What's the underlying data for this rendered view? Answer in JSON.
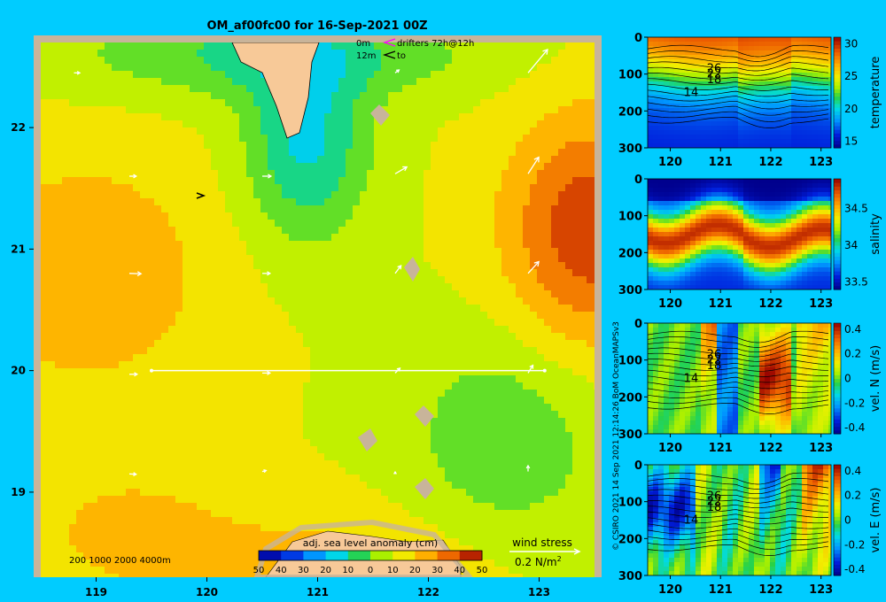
{
  "title": "OM_af00fc00 for 16-Sep-2021 00Z",
  "legend": {
    "depth_0": "0m",
    "depth_12": "12m",
    "drifters": "drifters 72h@12h",
    "to": "to"
  },
  "bathymetry_label": "200  1000  2000  4000m",
  "colorbar": {
    "title": "adj. sea level anomaly (cm)",
    "ticks": [
      "50",
      "40",
      "30",
      "20",
      "10",
      "0",
      "10",
      "20",
      "30",
      "40",
      "50"
    ]
  },
  "wind_stress": {
    "title": "wind stress",
    "scale_label": "0.2 N/m",
    "scale_sup": "2"
  },
  "credit": "© CSIRO 2021   14 Sep 2021 12:14:26 BoM OceanMAPSv3",
  "map": {
    "xlim": [
      118.5,
      123.5
    ],
    "ylim": [
      18.3,
      22.7
    ],
    "x_ticks": [
      "119",
      "120",
      "121",
      "122",
      "123"
    ],
    "y_ticks": [
      "19",
      "20",
      "21",
      "22"
    ],
    "section_lat": 20.0,
    "section_lon_range": [
      119.5,
      123.05
    ],
    "colors": {
      "land": "#f7c998",
      "frame": "#c8b49a",
      "sea_default": "#a8f000"
    },
    "eddies": [
      {
        "lon": 118.9,
        "lat": 20.8,
        "rx": 1.1,
        "ry": 0.95,
        "value": 28
      },
      {
        "lon": 123.45,
        "lat": 21.15,
        "rx": 0.75,
        "ry": 0.95,
        "value": 42
      },
      {
        "lon": 120.9,
        "lat": 21.9,
        "rx": 0.55,
        "ry": 0.8,
        "value": -14
      },
      {
        "lon": 120.6,
        "lat": 22.6,
        "rx": 1.8,
        "ry": 0.35,
        "value": -6
      },
      {
        "lon": 122.7,
        "lat": 19.45,
        "rx": 0.9,
        "ry": 0.9,
        "value": -2
      },
      {
        "lon": 121.0,
        "lat": 18.3,
        "rx": 1.5,
        "ry": 0.55,
        "value": 24
      },
      {
        "lon": 119.3,
        "lat": 18.7,
        "rx": 0.9,
        "ry": 0.5,
        "value": 22
      }
    ],
    "wind_arrows": [
      {
        "lon": 118.8,
        "lat": 22.45,
        "u": 0.3,
        "v": 0.0
      },
      {
        "lon": 119.3,
        "lat": 21.6,
        "u": 0.35,
        "v": 0.0
      },
      {
        "lon": 119.3,
        "lat": 20.8,
        "u": 0.6,
        "v": -0.02
      },
      {
        "lon": 119.3,
        "lat": 19.97,
        "u": 0.4,
        "v": 0.0
      },
      {
        "lon": 119.3,
        "lat": 19.15,
        "u": 0.35,
        "v": -0.02
      },
      {
        "lon": 120.5,
        "lat": 21.6,
        "u": 0.45,
        "v": 0.0
      },
      {
        "lon": 120.5,
        "lat": 20.8,
        "u": 0.4,
        "v": 0.0
      },
      {
        "lon": 120.5,
        "lat": 19.98,
        "u": 0.4,
        "v": 0.0
      },
      {
        "lon": 120.5,
        "lat": 19.17,
        "u": 0.2,
        "v": 0.05
      },
      {
        "lon": 121.7,
        "lat": 22.45,
        "u": 0.2,
        "v": 0.15
      },
      {
        "lon": 121.7,
        "lat": 21.62,
        "u": 0.6,
        "v": 0.35
      },
      {
        "lon": 121.7,
        "lat": 20.8,
        "u": 0.3,
        "v": 0.4
      },
      {
        "lon": 121.7,
        "lat": 19.98,
        "u": 0.25,
        "v": 0.25
      },
      {
        "lon": 121.7,
        "lat": 19.15,
        "u": 0.0,
        "v": 0.1
      },
      {
        "lon": 122.9,
        "lat": 22.45,
        "u": 1.0,
        "v": 1.2
      },
      {
        "lon": 122.9,
        "lat": 21.62,
        "u": 0.55,
        "v": 0.85
      },
      {
        "lon": 122.9,
        "lat": 20.8,
        "u": 0.55,
        "v": 0.6
      },
      {
        "lon": 122.9,
        "lat": 19.98,
        "u": 0.25,
        "v": 0.4
      },
      {
        "lon": 122.9,
        "lat": 19.17,
        "u": 0.0,
        "v": 0.3
      }
    ]
  },
  "sections": [
    {
      "name": "temperature",
      "cbar_ticks": [
        "30",
        "25",
        "20",
        "15"
      ],
      "cbar_range": [
        14,
        31
      ],
      "colormap": "temp"
    },
    {
      "name": "salinity",
      "cbar_ticks": [
        "34.5",
        "34",
        "33.5"
      ],
      "cbar_range": [
        33.4,
        34.9
      ],
      "colormap": "temp"
    },
    {
      "name": "vel. N (m/s)",
      "cbar_ticks": [
        "0.4",
        "0.2",
        "0",
        "-0.2",
        "-0.4"
      ],
      "cbar_range": [
        -0.45,
        0.45
      ],
      "colormap": "temp"
    },
    {
      "name": "vel. E (m/s)",
      "cbar_ticks": [
        "0.4",
        "0.2",
        "0",
        "-0.2",
        "-0.4"
      ],
      "cbar_range": [
        -0.45,
        0.45
      ],
      "colormap": "temp"
    }
  ],
  "section_axes": {
    "x_ticks": [
      "120",
      "121",
      "122",
      "123"
    ],
    "x_range": [
      119.55,
      123.2
    ],
    "y_ticks": [
      "0",
      "100",
      "200",
      "300"
    ],
    "y_range": [
      0,
      300
    ],
    "isotherm_labels": [
      "26",
      "22",
      "18",
      "14"
    ]
  }
}
